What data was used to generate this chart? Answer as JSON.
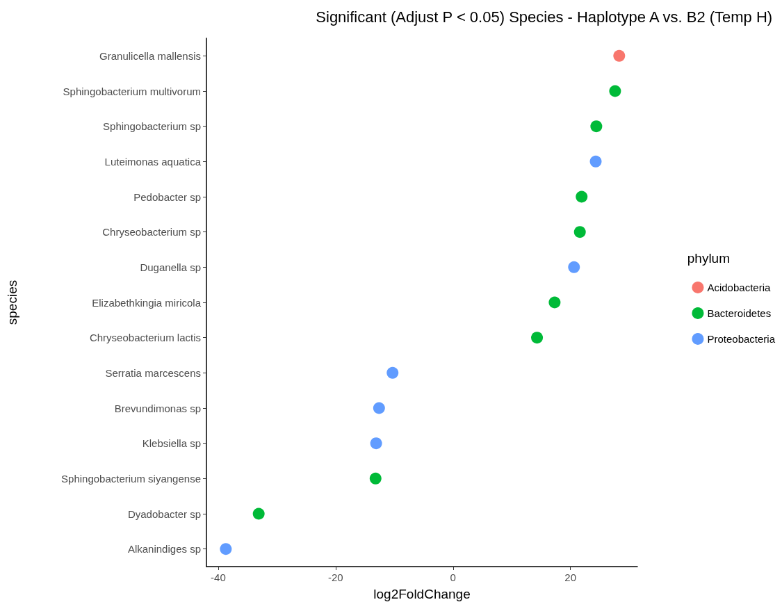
{
  "chart_data": {
    "type": "scatter",
    "orientation": "horizontal",
    "title": "Significant (Adjust P < 0.05) Species - Haplotype A vs. B2 (Temp H)",
    "xlabel": "log2FoldChange",
    "ylabel": "species",
    "legend_title": "phylum",
    "legend": "right",
    "grid": false,
    "marker": "circle",
    "categories": [
      "Granulicella mallensis",
      "Sphingobacterium multivorum",
      "Sphingobacterium sp",
      "Luteimonas aquatica",
      "Pedobacter sp",
      "Chryseobacterium sp",
      "Duganella sp",
      "Elizabethkingia miricola",
      "Chryseobacterium lactis",
      "Serratia marcescens",
      "Brevundimonas sp",
      "Klebsiella sp",
      "Sphingobacterium siyangense",
      "Dyadobacter sp",
      "Alkanindiges sp"
    ],
    "xlim": [
      -42,
      31.4
    ],
    "xticks": [
      -40,
      -20,
      0,
      20
    ],
    "series": [
      {
        "name": "Acidobacteria",
        "color": "#f8766d",
        "values": [
          28.3,
          null,
          null,
          null,
          null,
          null,
          null,
          null,
          null,
          null,
          null,
          null,
          null,
          null,
          null
        ]
      },
      {
        "name": "Bacteroidetes",
        "color": "#00ba38",
        "values": [
          null,
          27.6,
          24.4,
          null,
          21.9,
          21.6,
          null,
          17.3,
          14.3,
          null,
          null,
          null,
          -13.2,
          -33.1,
          null
        ]
      },
      {
        "name": "Proteobacteria",
        "color": "#619cff",
        "values": [
          null,
          null,
          null,
          24.3,
          null,
          null,
          20.6,
          null,
          null,
          -10.3,
          -12.6,
          -13.1,
          null,
          null,
          -38.7
        ]
      }
    ]
  }
}
